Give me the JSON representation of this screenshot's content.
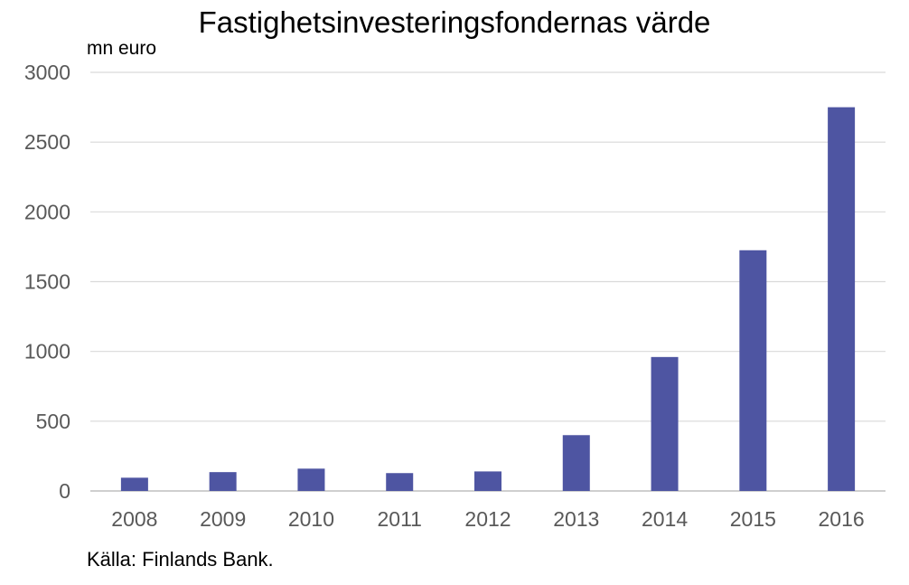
{
  "chart_data": {
    "type": "bar",
    "title": "Fastighetsinvesteringsfondernas värde",
    "unit_label": "mn euro",
    "source": "Källa: Finlands Bank.",
    "categories": [
      "2008",
      "2009",
      "2010",
      "2011",
      "2012",
      "2013",
      "2014",
      "2015",
      "2016"
    ],
    "values": [
      95,
      135,
      160,
      128,
      140,
      400,
      960,
      1725,
      2750
    ],
    "ylim": [
      0,
      3000
    ],
    "yticks": [
      0,
      500,
      1000,
      1500,
      2000,
      2500,
      3000
    ],
    "grid": true,
    "bar_color": "#4E55A2",
    "grid_color": "#D9D9D9",
    "axis_color": "#BFBFBF",
    "tick_color": "#595959"
  }
}
